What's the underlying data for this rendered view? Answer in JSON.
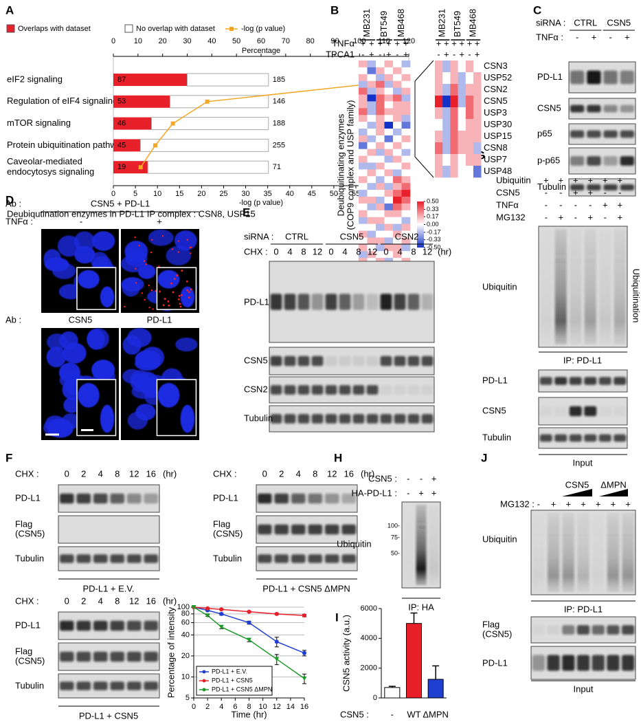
{
  "panels": {
    "A": {
      "label": "A",
      "caption": "Deubiqutination enzymes in PD-L1 IP complex : CSN8, USP15"
    },
    "B": {
      "label": "B"
    },
    "C": {
      "label": "C",
      "sirna_label": "siRNA :",
      "groups": [
        "CTRL",
        "CSN5"
      ],
      "tnf_label": "TNFα :",
      "tnf": [
        "-",
        "+",
        "-",
        "+"
      ],
      "rows": [
        "PD-L1",
        "CSN5",
        "p65",
        "p-p65",
        "Tubulin"
      ]
    },
    "D": {
      "label": "D",
      "ab_label": "Ab :",
      "ab_top": "CSN5 + PD-L1",
      "tnf_label": "TNFα :",
      "tnf": [
        "-",
        "+"
      ],
      "ab_bottom": [
        "CSN5",
        "PD-L1"
      ]
    },
    "E": {
      "label": "E",
      "sirna_label": "siRNA :",
      "groups": [
        "CTRL",
        "CSN5",
        "CSN2"
      ],
      "chx_label": "CHX :",
      "times": [
        0,
        4,
        8,
        12
      ],
      "unit": "(hr)",
      "rows": [
        "PD-L1",
        "CSN5",
        "CSN2",
        "Tubulin"
      ]
    },
    "F": {
      "label": "F",
      "chx_label": "CHX :",
      "times": [
        0,
        2,
        4,
        8,
        12,
        16
      ],
      "unit": "(hr)",
      "rows": [
        "PD-L1",
        [
          "Flag",
          "(CSN5)"
        ],
        "Tubulin"
      ],
      "captions": [
        "PD-L1 + E.V.",
        "PD-L1 + CSN5 ΔMPN",
        "PD-L1 + CSN5"
      ]
    },
    "G": {
      "label": "G",
      "conditions": [
        {
          "name": "Ubiquitin",
          "values": [
            "+",
            "+",
            "+",
            "+",
            "+",
            "+"
          ]
        },
        {
          "name": "CSN5",
          "values": [
            "-",
            "-",
            "+",
            "+",
            "-",
            "-"
          ]
        },
        {
          "name": "TNFα",
          "values": [
            "-",
            "-",
            "-",
            "-",
            "+",
            "+"
          ]
        },
        {
          "name": "MG132",
          "values": [
            "-",
            "+",
            "-",
            "+",
            "-",
            "+"
          ]
        }
      ],
      "ip_row": "Ubiquitin",
      "side_label": "Ubiquitination",
      "ip_caption": "IP: PD-L1",
      "input_rows": [
        "PD-L1",
        "CSN5",
        "Tubulin"
      ],
      "input_caption": "Input"
    },
    "H": {
      "label": "H",
      "conditions": [
        {
          "name": "CSN5 :",
          "values": [
            "-",
            "-",
            "+"
          ]
        },
        {
          "name": "HA-PD-L1 :",
          "values": [
            "-",
            "+",
            "+"
          ]
        }
      ],
      "row": "Ubiquitin",
      "markers": [
        "100-",
        "75-",
        "50-"
      ],
      "caption": "IP: HA"
    },
    "I": {
      "label": "I"
    },
    "J": {
      "label": "J",
      "groups": [
        "CSN5",
        "ΔMPN"
      ],
      "mg_label": "MG132 :",
      "mg": [
        "-",
        "+",
        "+",
        "+",
        "+",
        "+",
        "+"
      ],
      "ip_row": "Ubiquitin",
      "ip_caption": "IP: PD-L1",
      "input_rows": [
        [
          "Flag",
          "(CSN5)"
        ],
        "PD-L1"
      ],
      "input_caption": "Input"
    }
  },
  "chart_data": [
    {
      "type": "bar",
      "orientation": "horizontal",
      "categories": [
        "eIF2 signaling",
        "Regulation of eIF4 signaling",
        "mTOR signaling",
        "Protein ubiquitination pathway",
        [
          "Caveolar-mediated",
          "endocytosys signaling"
        ]
      ],
      "label_colors": [
        "#000000",
        "#000000",
        "#000000",
        "#e8202a",
        "#000000"
      ],
      "overlap_counts": [
        87,
        53,
        46,
        45,
        19
      ],
      "totals": [
        185,
        146,
        188,
        255,
        71
      ],
      "series": [
        {
          "name": "Overlaps with dataset",
          "color": "#e8202a",
          "values": [
            30,
            23,
            15.5,
            11,
            14
          ]
        },
        {
          "name": "No overlap with dataset",
          "color": "#ffffff",
          "values": [
            33,
            40,
            47.5,
            52,
            49
          ]
        },
        {
          "name": "-log (p value)",
          "color": "#f5a623",
          "axis": "x2",
          "values": [
            66.9,
            21.3,
            13.5,
            9.5,
            6.2
          ]
        }
      ],
      "xlabel": "Percentage",
      "xlim": [
        0,
        120
      ],
      "xticks": [
        0,
        10,
        20,
        30,
        40,
        50,
        60,
        70,
        80,
        90,
        100,
        110,
        120
      ],
      "x2label": "-log (p value)",
      "x2lim": [
        0,
        67
      ],
      "x2ticks": [
        0,
        5,
        10,
        15,
        20,
        25,
        30,
        35,
        40,
        45,
        50,
        55,
        60,
        65
      ]
    },
    {
      "type": "heatmap",
      "cell_lines": [
        "MB231",
        "BT549",
        "MB468"
      ],
      "conditions": [
        {
          "name": "TNFα",
          "values": [
            "+",
            "+",
            "+",
            "+",
            "+",
            "+"
          ]
        },
        {
          "name": "TPCA1",
          "values": [
            "-",
            "+",
            "-",
            "+",
            "-",
            "+"
          ]
        }
      ],
      "ylabel": [
        "Deubiquitinating enzymes",
        "(COP9 complex and USP family)"
      ],
      "colors": {
        "low": "#1432c8",
        "mid": "#ffffff",
        "high": "#e8202a"
      },
      "colorbar_ticks": [
        {
          "value": 0.5,
          "label": "0.50"
        },
        {
          "value": 0.33,
          "label": "0.33"
        },
        {
          "value": 0.17,
          "label": "0.17"
        },
        {
          "value": 0,
          "label": "0.00"
        },
        {
          "value": -0.17,
          "label": "-0.17"
        },
        {
          "value": -0.33,
          "label": "-0.33"
        },
        {
          "value": -0.5,
          "label": "-0.50"
        }
      ],
      "values": [
        [
          0.17,
          -0.17,
          0,
          0.17,
          0,
          -0.17
        ],
        [
          0,
          -0.33,
          0.17,
          0,
          0.17,
          0
        ],
        [
          0.17,
          0,
          -0.17,
          0.17,
          0,
          0.17
        ],
        [
          -0.17,
          0.17,
          0.33,
          -0.17,
          0.17,
          0
        ],
        [
          0.33,
          -0.17,
          0.17,
          0,
          -0.17,
          0.17
        ],
        [
          0.17,
          -0.5,
          0.33,
          0.17,
          0.33,
          -0.17
        ],
        [
          0.17,
          -0.17,
          0.33,
          0,
          0.17,
          0.17
        ],
        [
          0.33,
          -0.17,
          0.33,
          0.17,
          0.17,
          0.17
        ],
        [
          0.17,
          0,
          0.17,
          0,
          0.17,
          -0.17
        ],
        [
          0,
          -0.17,
          0.17,
          -0.5,
          0,
          -0.33
        ],
        [
          -0.17,
          0,
          0.17,
          0,
          -0.17,
          0
        ],
        [
          0.17,
          -0.17,
          0,
          -0.33,
          0,
          0.17
        ],
        [
          -0.33,
          0,
          0.17,
          0,
          0.17,
          0
        ],
        [
          0,
          0.17,
          -0.17,
          0.17,
          0,
          -0.17
        ],
        [
          0.17,
          0,
          0,
          -0.17,
          0.17,
          0
        ],
        [
          -0.17,
          -0.17,
          0.17,
          0,
          0,
          0.17
        ],
        [
          0,
          0.17,
          0,
          0.17,
          -0.17,
          0
        ],
        [
          0.17,
          0,
          -0.17,
          0,
          0.33,
          0.17
        ],
        [
          0,
          -0.17,
          0.17,
          -0.17,
          0.17,
          0.33
        ],
        [
          -0.17,
          0,
          0,
          0.17,
          0.33,
          0.5
        ],
        [
          0.17,
          0.17,
          -0.17,
          0,
          0.5,
          0.33
        ],
        [
          0,
          -0.17,
          0.17,
          -0.33,
          0.33,
          0.17
        ],
        [
          0.17,
          0,
          0,
          0.17,
          0.17,
          0
        ],
        [
          -0.17,
          0.17,
          0.17,
          0,
          0,
          -0.17
        ],
        [
          0,
          0,
          -0.17,
          0.17,
          -0.17,
          0.17
        ],
        [
          0.17,
          -0.17,
          0,
          0,
          0.17,
          0
        ],
        [
          0,
          0.17,
          0.17,
          -0.17,
          0,
          0.17
        ],
        [
          0.17,
          0,
          -0.17,
          0.17,
          0.17,
          -0.17
        ],
        [
          -0.17,
          0.17,
          0,
          0,
          0.17,
          0
        ],
        [
          0.17,
          0,
          0.17,
          -0.17,
          0,
          0.17
        ]
      ],
      "zoom_rows": [
        "CSN3",
        "USP52",
        "CSN2",
        "CSN5",
        "USP3",
        "USP30",
        "USP15",
        "CSN8",
        "USP7",
        "USP48"
      ],
      "highlight": "CSN5",
      "highlight_color": "#e8202a",
      "zoom_values": [
        [
          0.17,
          -0.17,
          0.17,
          0,
          0.17,
          0
        ],
        [
          0.17,
          0,
          0.17,
          -0.17,
          0,
          0.17
        ],
        [
          0.17,
          -0.17,
          0.33,
          -0.17,
          0.17,
          0.17
        ],
        [
          0.5,
          -0.5,
          0.5,
          -0.17,
          0.33,
          0.17
        ],
        [
          0.17,
          -0.17,
          0.33,
          0,
          0.33,
          0.17
        ],
        [
          0,
          -0.17,
          0.33,
          0,
          0.17,
          0.17
        ],
        [
          0.17,
          -0.17,
          0.33,
          0.17,
          0.17,
          0.17
        ],
        [
          0.33,
          -0.17,
          0.33,
          0.17,
          0.17,
          -0.17
        ],
        [
          0.17,
          0,
          0.17,
          0,
          0.17,
          0.17
        ],
        [
          0.17,
          -0.17,
          0.17,
          0,
          0,
          -0.33
        ]
      ]
    },
    {
      "type": "line",
      "x": [
        0,
        2,
        4,
        8,
        12,
        16
      ],
      "series": [
        {
          "name": "PD-L1 + E.V.",
          "color": "#1f3fd0",
          "marker": "circle",
          "values": [
            100,
            90,
            80,
            60,
            32,
            22
          ],
          "errors": [
            0,
            2,
            3,
            3,
            5,
            2
          ]
        },
        {
          "name": "PD-L1 + CSN5",
          "color": "#e8202a",
          "marker": "circle",
          "values": [
            100,
            96,
            93,
            86,
            80,
            76
          ],
          "errors": [
            0,
            1,
            2,
            2,
            2,
            3
          ]
        },
        {
          "name": "PD-L1 + CSN5 ΔMPN",
          "color": "#1e9a2a",
          "marker": "triangle",
          "values": [
            100,
            76,
            52,
            34,
            18,
            9.5
          ],
          "errors": [
            0,
            2,
            3,
            2,
            3,
            1.5
          ]
        }
      ],
      "xlabel": "Time (hr)",
      "ylabel": "Percentage of intensity",
      "xlim": [
        0,
        16
      ],
      "xticks": [
        0,
        2,
        4,
        6,
        8,
        10,
        12,
        14,
        16
      ],
      "ylim": [
        5,
        100
      ],
      "yticks": [
        5,
        10,
        20,
        40,
        60,
        80,
        100
      ],
      "log_y": true,
      "grid": true,
      "legend": "lower left"
    },
    {
      "type": "bar",
      "xprefix": "CSN5 :",
      "categories": [
        "-",
        "WT",
        "ΔMPN"
      ],
      "values": [
        700,
        5000,
        1250
      ],
      "errors": [
        80,
        700,
        900
      ],
      "colors": [
        "#ffffff",
        "#e8202a",
        "#1f3fd0"
      ],
      "ylabel": "CSN5 activity (a.u.)",
      "ylim": [
        0,
        6000
      ],
      "yticks": [
        0,
        2000,
        4000,
        6000
      ]
    }
  ]
}
